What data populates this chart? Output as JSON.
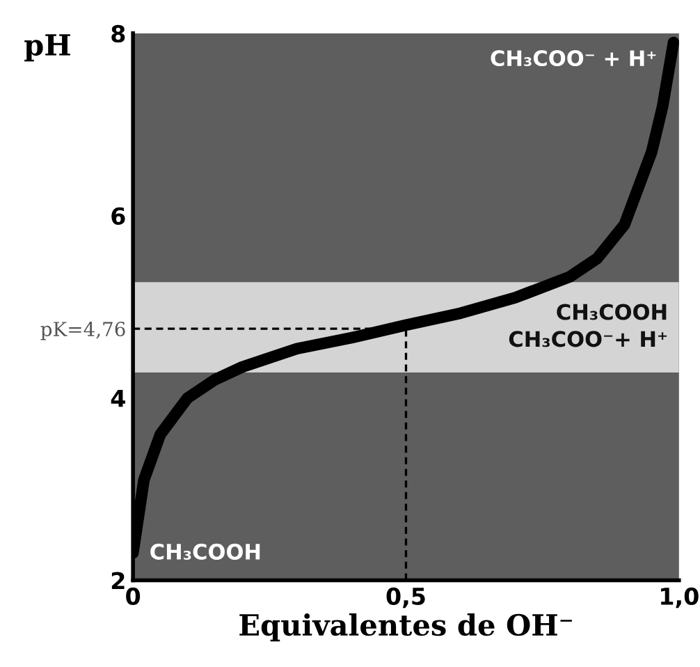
{
  "chart_data": {
    "type": "line",
    "xlabel": "Equivalentes de OH⁻",
    "ylabel": "pH",
    "xlim": [
      0,
      1.0
    ],
    "ylim": [
      2,
      8
    ],
    "xticks": [
      0,
      {
        "value": 0.5,
        "label": "0,5"
      },
      {
        "value": 1.0,
        "label": "1,0"
      }
    ],
    "yticks": [
      2,
      4,
      {
        "value": 4.76,
        "label": "pK=4,76"
      },
      6,
      8
    ],
    "series": [
      {
        "color": "#000000",
        "x": [
          0,
          0.02,
          0.05,
          0.1,
          0.15,
          0.2,
          0.3,
          0.4,
          0.5,
          0.6,
          0.7,
          0.8,
          0.85,
          0.9,
          0.95,
          0.97,
          0.99
        ],
        "values": [
          2.3,
          3.1,
          3.6,
          4.0,
          4.2,
          4.34,
          4.54,
          4.66,
          4.8,
          4.93,
          5.1,
          5.33,
          5.53,
          5.9,
          6.7,
          7.2,
          7.9
        ]
      },
      {
        "color": "#000000",
        "line_style": "dashed",
        "x": [
          0,
          0.5
        ],
        "values": [
          4.76,
          4.76
        ]
      },
      {
        "color": "#000000",
        "line_style": "dashed",
        "x": [
          0.5,
          0.5
        ],
        "values": [
          2,
          4.76
        ]
      }
    ],
    "bands": [
      {
        "axis": "y",
        "from": 4.28,
        "to": 5.27,
        "color": "#d4d4d4",
        "label": "CH₃COOH\nCH₃COO⁻+ H⁺"
      }
    ],
    "annotations": [
      "CH₃COOH",
      "CH₃COO⁻ + H⁺"
    ],
    "grid": false,
    "legend": false
  }
}
